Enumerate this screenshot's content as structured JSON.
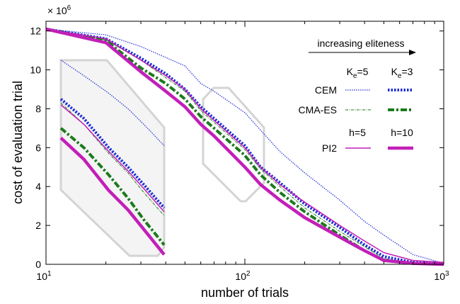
{
  "chart_data": {
    "type": "line",
    "xlabel": "number of trials",
    "ylabel": "cost of evaluation trial",
    "x_scale": "log",
    "xlim": [
      10,
      1000
    ],
    "ylim": [
      0,
      12.5
    ],
    "y_multiplier": "× 10",
    "y_multiplier_exp": "6",
    "x_tick_base": "10",
    "x_ticks": [
      {
        "value": 10,
        "exp": "1"
      },
      {
        "value": 100,
        "exp": "2"
      },
      {
        "value": 1000,
        "exp": "3"
      }
    ],
    "y_ticks": [
      0,
      2,
      4,
      6,
      8,
      10,
      12
    ],
    "grid": false,
    "annotation": "increasing eliteness",
    "legend": {
      "col1_header": "K",
      "col1_header_sub": "e",
      "col1_header_tail": "=5",
      "col2_header": "K",
      "col2_header_sub": "e",
      "col2_header_tail": "=3",
      "pi2_col1_header": "h=5",
      "pi2_col2_header": "h=10",
      "rows": [
        "CEM",
        "CMA-ES",
        "PI2"
      ]
    },
    "colors": {
      "CEM": "#1f2fd6",
      "CMA-ES": "#1b7a1b",
      "PI2": "#c21fb8",
      "inset": "#d4d4d4"
    },
    "series": [
      {
        "name": "CEM",
        "variant": "K_e=5",
        "x": [
          10,
          20,
          30,
          50,
          60,
          70,
          100,
          120,
          150,
          200,
          300,
          400,
          500,
          700,
          1000
        ],
        "y": [
          12.1,
          11.8,
          11.2,
          10.2,
          9.3,
          8.9,
          7.8,
          6.9,
          5.8,
          4.7,
          3.3,
          2.2,
          1.5,
          0.5,
          0.05
        ]
      },
      {
        "name": "CEM",
        "variant": "K_e=3",
        "x": [
          10,
          20,
          30,
          40,
          50,
          60,
          70,
          100,
          120,
          150,
          200,
          300,
          400,
          500,
          700,
          1000
        ],
        "y": [
          12.1,
          11.6,
          10.6,
          9.8,
          9.0,
          8.1,
          7.5,
          6.1,
          5.0,
          4.2,
          3.1,
          1.9,
          1.0,
          0.4,
          0.1,
          0.02
        ]
      },
      {
        "name": "CMA-ES",
        "variant": "K_e=5",
        "x": [
          10,
          20,
          30,
          40,
          50,
          60,
          70,
          100,
          120,
          150,
          200,
          300,
          400,
          500,
          700,
          1000
        ],
        "y": [
          12.1,
          11.55,
          10.5,
          9.6,
          8.9,
          7.9,
          7.3,
          5.9,
          4.9,
          4.0,
          2.9,
          1.7,
          0.9,
          0.3,
          0.05,
          0.0
        ]
      },
      {
        "name": "CMA-ES",
        "variant": "K_e=3",
        "x": [
          10,
          20,
          30,
          40,
          50,
          60,
          70,
          100,
          120,
          150,
          200,
          300,
          400,
          500,
          700,
          1000
        ],
        "y": [
          12.1,
          11.5,
          10.1,
          9.3,
          8.5,
          7.6,
          7.0,
          5.6,
          4.6,
          3.7,
          2.7,
          1.5,
          0.7,
          0.2,
          0.05,
          0.0
        ]
      },
      {
        "name": "PI2",
        "variant": "h=5",
        "x": [
          10,
          20,
          30,
          40,
          50,
          60,
          70,
          100,
          120,
          150,
          200,
          300,
          400,
          500,
          700,
          1000
        ],
        "y": [
          12.1,
          11.6,
          10.5,
          9.7,
          9.0,
          8.0,
          7.4,
          6.0,
          5.0,
          4.1,
          3.2,
          2.0,
          1.2,
          0.6,
          0.2,
          0.1
        ]
      },
      {
        "name": "PI2",
        "variant": "h=10",
        "x": [
          10,
          20,
          30,
          40,
          50,
          60,
          70,
          100,
          120,
          150,
          200,
          300,
          400,
          500,
          700,
          1000
        ],
        "y": [
          12.1,
          11.4,
          9.9,
          8.9,
          8.1,
          7.2,
          6.6,
          5.0,
          4.1,
          3.3,
          2.4,
          1.4,
          0.7,
          0.2,
          0.05,
          0.0
        ]
      }
    ],
    "inset_series": [
      {
        "name": "CEM",
        "variant": "K_e=5",
        "x": [
          11.5,
          15,
          20,
          25,
          30,
          38
        ],
        "y": [
          10.5,
          9.7,
          8.8,
          8.0,
          7.2,
          6.1
        ]
      },
      {
        "name": "CEM",
        "variant": "K_e=3",
        "x": [
          11.5,
          15,
          20,
          25,
          30,
          38
        ],
        "y": [
          8.5,
          7.5,
          6.0,
          5.0,
          4.1,
          2.9
        ]
      },
      {
        "name": "CMA-ES",
        "variant": "K_e=5",
        "x": [
          11.5,
          15,
          20,
          25,
          30,
          38
        ],
        "y": [
          8.3,
          7.2,
          5.7,
          4.7,
          3.7,
          2.5
        ]
      },
      {
        "name": "CMA-ES",
        "variant": "K_e=3",
        "x": [
          11.5,
          15,
          20,
          25,
          30,
          38
        ],
        "y": [
          7.0,
          6.0,
          4.6,
          3.4,
          2.3,
          1.0
        ]
      },
      {
        "name": "PI2",
        "variant": "h=5",
        "x": [
          11.5,
          15,
          20,
          25,
          30,
          38
        ],
        "y": [
          8.2,
          7.2,
          5.8,
          4.8,
          3.9,
          2.7
        ]
      },
      {
        "name": "PI2",
        "variant": "h=10",
        "x": [
          11.5,
          15,
          20,
          25,
          30,
          38
        ],
        "y": [
          6.5,
          5.4,
          3.8,
          2.8,
          1.8,
          0.5
        ]
      }
    ]
  }
}
